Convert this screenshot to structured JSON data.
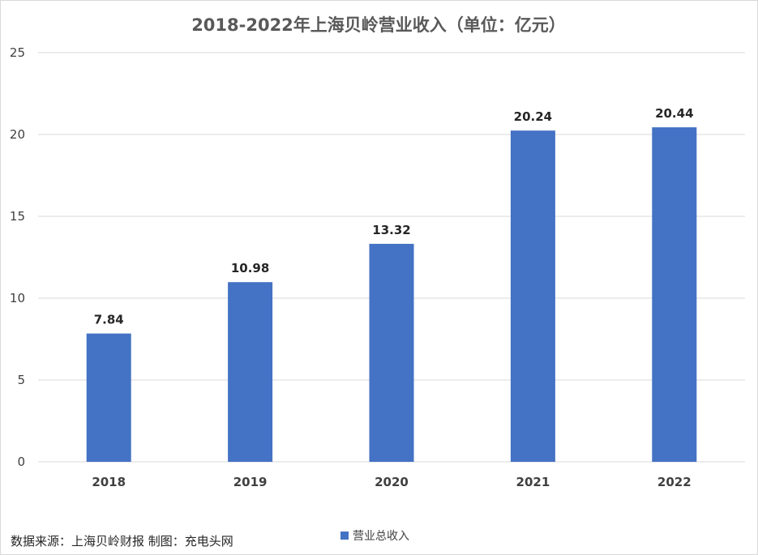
{
  "chart_data": {
    "type": "bar",
    "title": "2018-2022年上海贝岭营业收入（单位：亿元）",
    "categories": [
      "2018",
      "2019",
      "2020",
      "2021",
      "2022"
    ],
    "series": [
      {
        "name": "营业总收入",
        "values": [
          7.84,
          10.98,
          13.32,
          20.24,
          20.44
        ],
        "color": "#4472C4"
      }
    ],
    "data_labels": [
      "7.84",
      "10.98",
      "13.32",
      "20.24",
      "20.44"
    ],
    "ylim": [
      0,
      25
    ],
    "yticks": [
      0,
      5,
      10,
      15,
      20,
      25
    ],
    "xlabel": "",
    "ylabel": "",
    "grid": true,
    "legend_position": "bottom"
  },
  "footer": {
    "source": "数据来源：上海贝岭财报 制图：充电头网"
  },
  "colors": {
    "bar": "#4472C4",
    "grid": "#d9d9d9",
    "title": "#595959"
  }
}
